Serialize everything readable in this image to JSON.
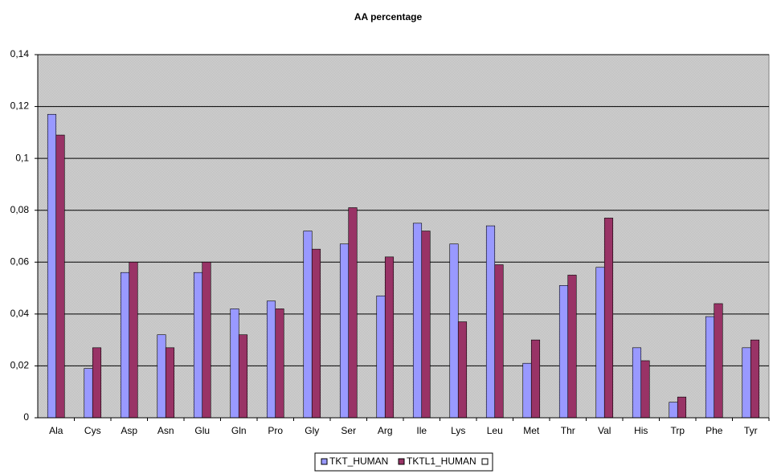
{
  "chart_data": {
    "type": "bar",
    "title": "AA percentage",
    "categories": [
      "Ala",
      "Cys",
      "Asp",
      "Asn",
      "Glu",
      "Gln",
      "Pro",
      "Gly",
      "Ser",
      "Arg",
      "Ile",
      "Lys",
      "Leu",
      "Met",
      "Thr",
      "Val",
      "His",
      "Trp",
      "Phe",
      "Tyr"
    ],
    "series": [
      {
        "name": "TKT_HUMAN",
        "color": "#9999ff",
        "values": [
          0.117,
          0.019,
          0.056,
          0.032,
          0.056,
          0.042,
          0.045,
          0.072,
          0.067,
          0.047,
          0.075,
          0.067,
          0.074,
          0.021,
          0.051,
          0.058,
          0.027,
          0.006,
          0.039,
          0.027
        ]
      },
      {
        "name": "TKTL1_HUMAN",
        "color": "#993366",
        "values": [
          0.109,
          0.027,
          0.06,
          0.027,
          0.06,
          0.032,
          0.042,
          0.065,
          0.081,
          0.062,
          0.072,
          0.037,
          0.059,
          0.03,
          0.055,
          0.077,
          0.022,
          0.008,
          0.044,
          0.03
        ]
      }
    ],
    "ylim": [
      0,
      0.14
    ],
    "yticks": [
      0,
      {
        "value": 0.02,
        "label": "0,02"
      },
      {
        "value": 0.04,
        "label": "0,04"
      },
      {
        "value": 0.06,
        "label": "0,06"
      },
      {
        "value": 0.08,
        "label": "0,08"
      },
      {
        "value": 0.1,
        "label": "0,1"
      },
      {
        "value": 0.12,
        "label": "0,12"
      },
      {
        "value": 0.14,
        "label": "0,14"
      }
    ],
    "grid": true,
    "legend": "bottom"
  }
}
